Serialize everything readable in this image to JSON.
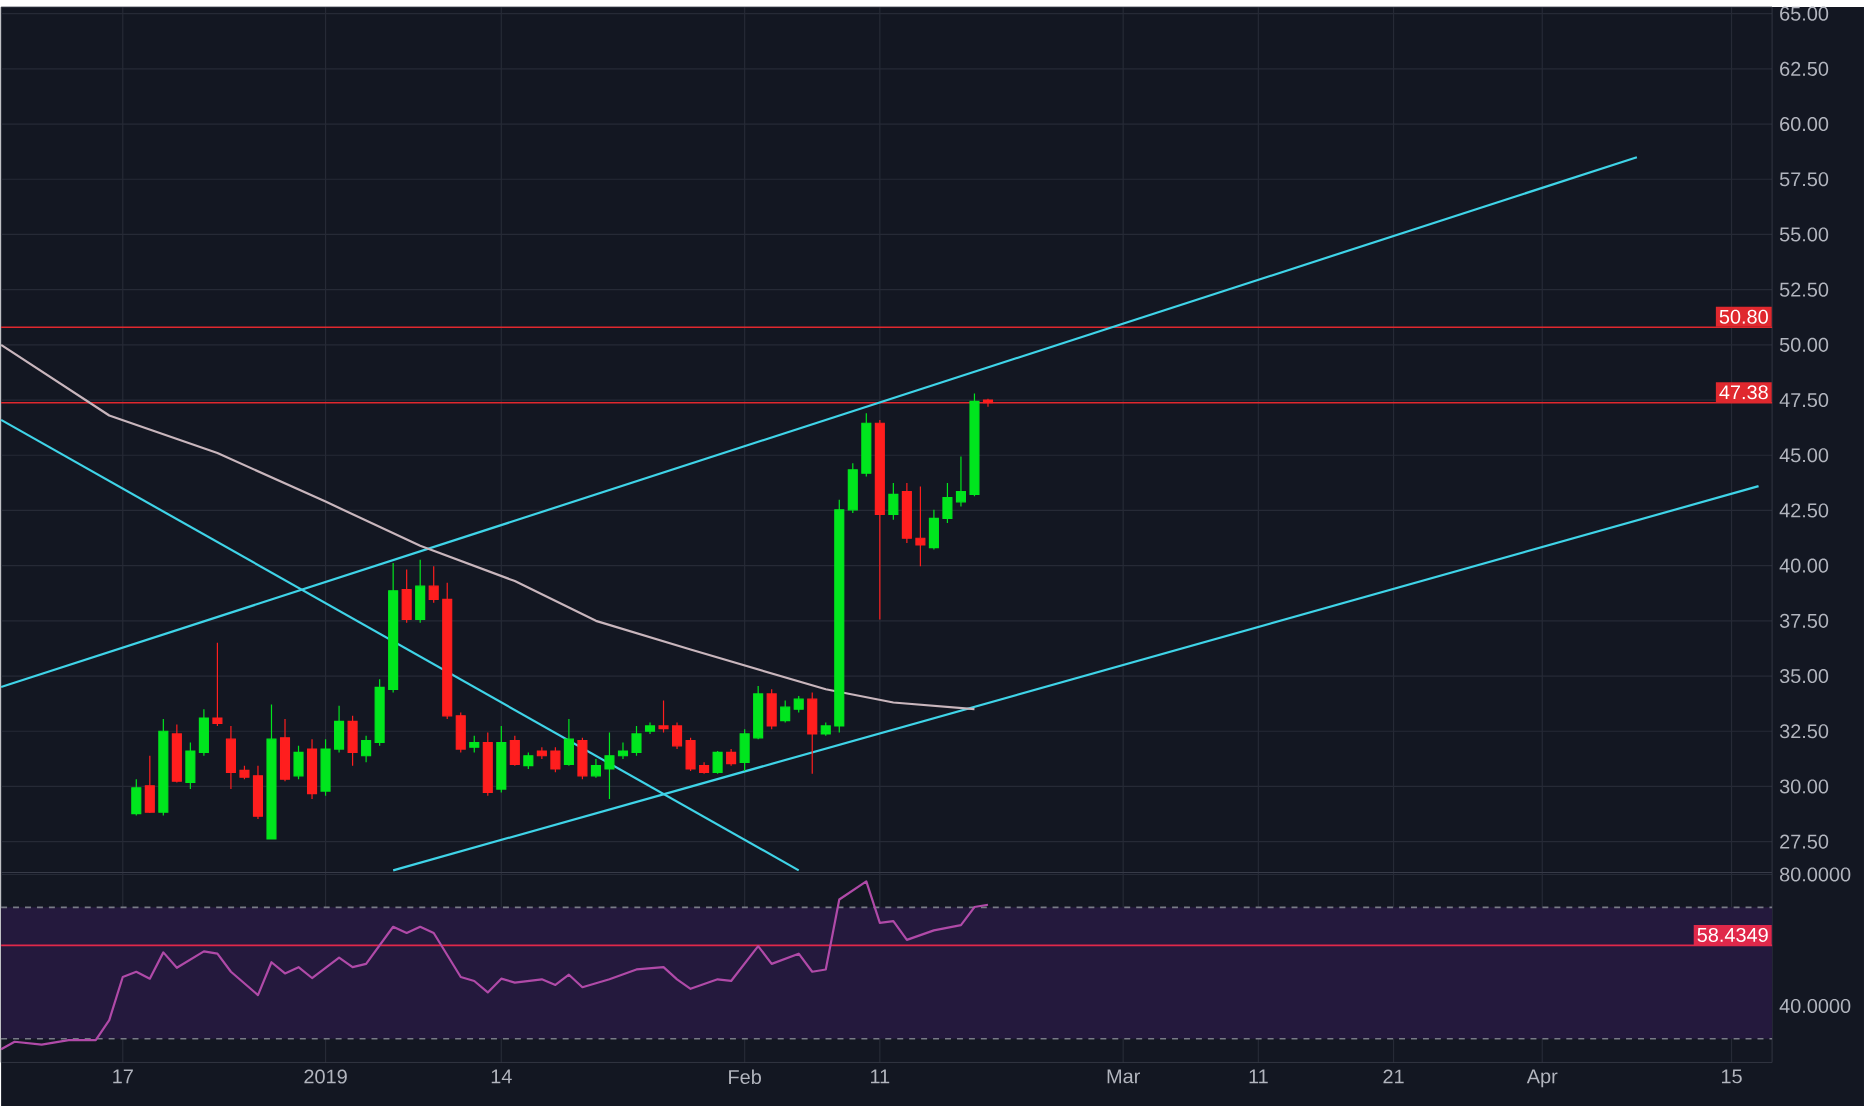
{
  "chart_data": [
    {
      "type": "candlestick",
      "x": [
        "2018-12-18",
        "2018-12-19",
        "2018-12-20",
        "2018-12-21",
        "2018-12-22",
        "2018-12-23",
        "2018-12-24",
        "2018-12-25",
        "2018-12-26",
        "2018-12-27",
        "2018-12-28",
        "2018-12-29",
        "2018-12-30",
        "2018-12-31",
        "2019-01-01",
        "2019-01-02",
        "2019-01-03",
        "2019-01-04",
        "2019-01-05",
        "2019-01-06",
        "2019-01-07",
        "2019-01-08",
        "2019-01-09",
        "2019-01-10",
        "2019-01-11",
        "2019-01-12",
        "2019-01-13",
        "2019-01-14",
        "2019-01-15",
        "2019-01-16",
        "2019-01-17",
        "2019-01-18",
        "2019-01-19",
        "2019-01-20",
        "2019-01-21",
        "2019-01-22",
        "2019-01-23",
        "2019-01-24",
        "2019-01-25",
        "2019-01-26",
        "2019-01-27",
        "2019-01-28",
        "2019-01-29",
        "2019-01-30",
        "2019-01-31",
        "2019-02-01",
        "2019-02-02",
        "2019-02-03",
        "2019-02-04",
        "2019-02-05",
        "2019-02-06",
        "2019-02-07",
        "2019-02-08",
        "2019-02-09",
        "2019-02-10",
        "2019-02-11",
        "2019-02-12",
        "2019-02-13",
        "2019-02-14",
        "2019-02-15",
        "2019-02-16",
        "2019-02-17",
        "2019-02-18",
        "2019-02-19"
      ],
      "ohlc": [
        [
          28.77,
          30.33,
          28.68,
          29.94
        ],
        [
          30.03,
          31.39,
          28.8,
          28.83
        ],
        [
          28.83,
          33.05,
          28.68,
          32.5
        ],
        [
          32.38,
          32.8,
          30.18,
          30.24
        ],
        [
          30.18,
          31.99,
          29.88,
          31.6
        ],
        [
          31.54,
          33.5,
          31.39,
          33.1
        ],
        [
          33.1,
          36.51,
          32.74,
          32.86
        ],
        [
          32.14,
          32.74,
          29.88,
          30.64
        ],
        [
          30.73,
          30.94,
          30.33,
          30.42
        ],
        [
          30.48,
          30.94,
          28.53,
          28.65
        ],
        [
          27.62,
          33.71,
          27.62,
          32.14
        ],
        [
          32.2,
          33.05,
          30.24,
          30.33
        ],
        [
          30.48,
          31.84,
          30.33,
          31.54
        ],
        [
          31.69,
          32.14,
          29.43,
          29.67
        ],
        [
          29.79,
          32.14,
          29.58,
          31.69
        ],
        [
          31.69,
          33.65,
          31.54,
          32.95
        ],
        [
          32.95,
          33.2,
          30.94,
          31.54
        ],
        [
          31.39,
          32.29,
          31.09,
          32.08
        ],
        [
          31.99,
          34.85,
          31.84,
          34.49
        ],
        [
          34.4,
          40.12,
          34.25,
          38.86
        ],
        [
          38.92,
          39.82,
          37.41,
          37.56
        ],
        [
          37.56,
          40.27,
          37.41,
          39.07
        ],
        [
          39.07,
          39.97,
          38.32,
          38.47
        ],
        [
          38.47,
          39.22,
          33.05,
          33.2
        ],
        [
          33.2,
          33.35,
          31.54,
          31.69
        ],
        [
          31.78,
          32.29,
          31.54,
          31.99
        ],
        [
          31.99,
          32.44,
          29.58,
          29.73
        ],
        [
          29.88,
          32.74,
          29.73,
          31.99
        ],
        [
          32.08,
          32.29,
          30.94,
          31.0
        ],
        [
          30.94,
          31.54,
          30.79,
          31.39
        ],
        [
          31.6,
          31.78,
          31.24,
          31.39
        ],
        [
          31.6,
          31.78,
          30.64,
          30.79
        ],
        [
          31.0,
          33.05,
          30.94,
          32.14
        ],
        [
          32.08,
          32.2,
          30.33,
          30.48
        ],
        [
          30.48,
          31.24,
          30.39,
          30.94
        ],
        [
          30.79,
          32.44,
          29.43,
          31.39
        ],
        [
          31.39,
          31.99,
          31.24,
          31.6
        ],
        [
          31.54,
          32.74,
          31.39,
          32.38
        ],
        [
          32.5,
          32.89,
          32.38,
          32.74
        ],
        [
          32.74,
          33.89,
          32.44,
          32.62
        ],
        [
          32.74,
          32.89,
          31.69,
          31.84
        ],
        [
          32.08,
          32.2,
          30.7,
          30.79
        ],
        [
          30.94,
          31.09,
          30.58,
          30.64
        ],
        [
          30.64,
          31.6,
          30.58,
          31.54
        ],
        [
          31.54,
          31.69,
          30.94,
          31.03
        ],
        [
          31.09,
          32.59,
          30.7,
          32.38
        ],
        [
          32.2,
          34.55,
          32.14,
          34.19
        ],
        [
          34.19,
          34.4,
          32.59,
          32.74
        ],
        [
          32.98,
          33.89,
          32.89,
          33.59
        ],
        [
          33.5,
          34.1,
          33.35,
          33.95
        ],
        [
          33.95,
          34.25,
          30.58,
          32.38
        ],
        [
          32.38,
          32.89,
          32.29,
          32.74
        ],
        [
          32.74,
          42.99,
          32.44,
          42.53
        ],
        [
          42.53,
          44.64,
          42.38,
          44.34
        ],
        [
          44.19,
          46.9,
          44.04,
          46.45
        ],
        [
          46.45,
          46.6,
          37.56,
          42.32
        ],
        [
          42.32,
          43.74,
          42.08,
          43.23
        ],
        [
          43.35,
          43.74,
          41.03,
          41.24
        ],
        [
          41.24,
          43.59,
          39.97,
          40.94
        ],
        [
          40.82,
          42.53,
          40.73,
          42.14
        ],
        [
          42.14,
          43.74,
          41.93,
          43.08
        ],
        [
          42.89,
          44.94,
          42.68,
          43.35
        ],
        [
          43.23,
          47.8,
          43.14,
          47.44
        ],
        [
          47.5,
          47.56,
          47.2,
          47.38
        ]
      ],
      "series": [
        {
          "type": "line",
          "color": "#3fd4e8",
          "x": [
            "2018-12-08",
            "2019-04-08"
          ],
          "values": [
            34.5,
            58.5
          ]
        },
        {
          "type": "line",
          "color": "#3fd4e8",
          "x": [
            "2019-01-06",
            "2019-04-17"
          ],
          "values": [
            26.2,
            43.6
          ]
        },
        {
          "type": "line",
          "color": "#3fd4e8",
          "x": [
            "2018-12-08",
            "2019-02-05"
          ],
          "values": [
            46.6,
            26.2
          ]
        },
        {
          "type": "line",
          "color": "#c9b6bd",
          "x": [
            "2018-12-08",
            "2018-12-16",
            "2018-12-24",
            "2019-01-01",
            "2019-01-08",
            "2019-01-15",
            "2019-01-21",
            "2019-01-28",
            "2019-02-07",
            "2019-02-12",
            "2019-02-18"
          ],
          "values": [
            50.0,
            46.8,
            45.1,
            42.9,
            40.9,
            39.3,
            37.5,
            36.2,
            34.4,
            33.8,
            33.5
          ]
        }
      ],
      "ref_lines": [
        {
          "axis": "y",
          "value": 50.8,
          "label": "50.80",
          "color": "#e0282e"
        },
        {
          "axis": "y",
          "value": 47.38,
          "label": "47.38",
          "color": "#e0282e"
        }
      ],
      "xlim": [
        "2018-12-08",
        "2019-04-18"
      ],
      "xticks": [
        {
          "value": "2018-12-17",
          "label": null
        },
        {
          "value": "2019-01-01",
          "label": null
        },
        {
          "value": "2019-01-14",
          "label": null
        },
        {
          "value": "2019-02-01",
          "label": null
        },
        {
          "value": "2019-02-11",
          "label": null
        },
        {
          "value": "2019-03-01",
          "label": null
        },
        {
          "value": "2019-03-11",
          "label": null
        },
        {
          "value": "2019-03-21",
          "label": null
        },
        {
          "value": "2019-04-01",
          "label": null
        },
        {
          "value": "2019-04-15",
          "label": null
        }
      ],
      "ylim": [
        26.1,
        65.3
      ],
      "yticks": [
        {
          "value": 27.5,
          "label": "27.50"
        },
        {
          "value": 30,
          "label": "30.00"
        },
        {
          "value": 32.5,
          "label": "32.50"
        },
        {
          "value": 35,
          "label": "35.00"
        },
        {
          "value": 37.5,
          "label": "37.50"
        },
        {
          "value": 40,
          "label": "40.00"
        },
        {
          "value": 42.5,
          "label": "42.50"
        },
        {
          "value": 45,
          "label": "45.00"
        },
        {
          "value": 47.5,
          "label": "47.50"
        },
        {
          "value": 50,
          "label": "50.00"
        },
        {
          "value": 52.5,
          "label": "52.50"
        },
        {
          "value": 55,
          "label": "55.00"
        },
        {
          "value": 57.5,
          "label": "57.50"
        },
        {
          "value": 60,
          "label": "60.00"
        },
        {
          "value": 62.5,
          "label": "62.50"
        },
        {
          "value": 65,
          "label": "65.00"
        }
      ],
      "grid": true,
      "tick_labels": "y"
    },
    {
      "type": "line",
      "series": [
        {
          "color": "#b04aa8",
          "x": [
            "2018-12-08",
            "2018-12-09",
            "2018-12-11",
            "2018-12-13",
            "2018-12-15",
            "2018-12-16",
            "2018-12-17",
            "2018-12-18",
            "2018-12-19",
            "2018-12-20",
            "2018-12-21",
            "2018-12-23",
            "2018-12-24",
            "2018-12-25",
            "2018-12-27",
            "2018-12-28",
            "2018-12-29",
            "2018-12-30",
            "2018-12-31",
            "2019-01-02",
            "2019-01-03",
            "2019-01-04",
            "2019-01-06",
            "2019-01-07",
            "2019-01-08",
            "2019-01-09",
            "2019-01-11",
            "2019-01-12",
            "2019-01-13",
            "2019-01-14",
            "2019-01-15",
            "2019-01-17",
            "2019-01-18",
            "2019-01-19",
            "2019-01-20",
            "2019-01-22",
            "2019-01-24",
            "2019-01-26",
            "2019-01-27",
            "2019-01-28",
            "2019-01-30",
            "2019-01-31",
            "2019-02-02",
            "2019-02-03",
            "2019-02-05",
            "2019-02-06",
            "2019-02-07",
            "2019-02-08",
            "2019-02-10",
            "2019-02-11",
            "2019-02-12",
            "2019-02-13",
            "2019-02-15",
            "2019-02-17",
            "2019-02-18",
            "2019-02-19"
          ],
          "values": [
            26.8,
            29.1,
            28.2,
            29.6,
            29.6,
            35.7,
            48.8,
            50.4,
            48.3,
            56.3,
            51.6,
            56.6,
            55.9,
            50.4,
            43.3,
            53.3,
            49.9,
            51.8,
            48.5,
            54.7,
            51.8,
            52.8,
            64.1,
            62.2,
            64.1,
            62.2,
            48.8,
            47.6,
            44.1,
            48.3,
            47.1,
            48.1,
            46.4,
            49.5,
            45.7,
            48.1,
            51.1,
            51.8,
            48.1,
            45.2,
            48.1,
            47.6,
            58.2,
            52.8,
            55.9,
            50.4,
            51.1,
            72.4,
            77.9,
            65.3,
            65.8,
            60.1,
            63.0,
            64.6,
            70.1,
            70.8
          ]
        }
      ],
      "bands": [
        {
          "axis": "y",
          "from": 30,
          "to": 70,
          "color": "#24193d"
        }
      ],
      "ref_lines": [
        {
          "axis": "y",
          "value": 58.4349,
          "label": "58.4349",
          "color": "#e0284a"
        },
        {
          "axis": "y",
          "value": 70,
          "color": "#787b86",
          "line_style": "dashed"
        },
        {
          "axis": "y",
          "value": 30,
          "color": "#787b86",
          "line_style": "dashed"
        }
      ],
      "xlim": [
        "2018-12-08",
        "2019-04-18"
      ],
      "xticks": [
        {
          "value": "2018-12-17",
          "label": "17"
        },
        {
          "value": "2019-01-01",
          "label": "2019"
        },
        {
          "value": "2019-01-14",
          "label": "14"
        },
        {
          "value": "2019-02-01",
          "label": "Feb"
        },
        {
          "value": "2019-02-11",
          "label": "11"
        },
        {
          "value": "2019-03-01",
          "label": "Mar"
        },
        {
          "value": "2019-03-11",
          "label": "11"
        },
        {
          "value": "2019-03-21",
          "label": "21"
        },
        {
          "value": "2019-04-01",
          "label": "Apr"
        },
        {
          "value": "2019-04-15",
          "label": "15"
        }
      ],
      "ylim": [
        22.8,
        80.6
      ],
      "yticks": [
        {
          "value": 80,
          "label": "80.0000"
        },
        {
          "value": 40,
          "label": "40.0000"
        }
      ],
      "grid": true
    }
  ]
}
